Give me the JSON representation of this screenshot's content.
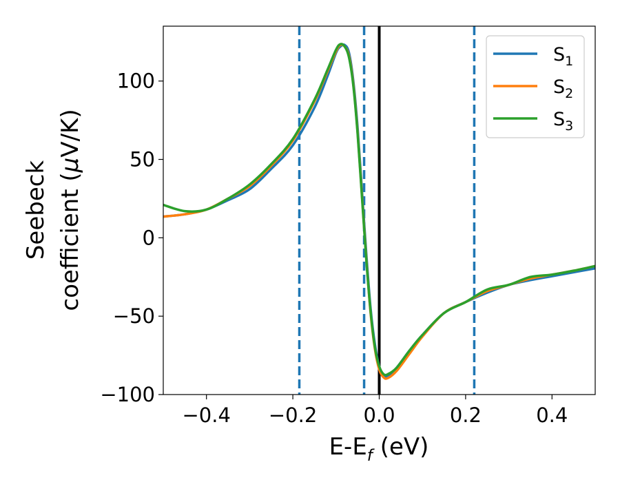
{
  "chart_data": {
    "type": "line",
    "title": "",
    "xlabel": {
      "main": "E-E",
      "sub": "f",
      "suffix": " (eV)"
    },
    "ylabel": {
      "line1": "Seebeck",
      "line2_prefix": "coefficient  (",
      "mu": "μ",
      "line2_suffix": "V/K)"
    },
    "xlim": [
      -0.5,
      0.5
    ],
    "ylim": [
      -100,
      135
    ],
    "x_ticks": [
      {
        "value": -0.4,
        "label": "−0.4"
      },
      {
        "value": -0.2,
        "label": "−0.2"
      },
      {
        "value": 0.0,
        "label": "0.0"
      },
      {
        "value": 0.2,
        "label": "0.2"
      },
      {
        "value": 0.4,
        "label": "0.4"
      }
    ],
    "y_ticks": [
      {
        "value": 100,
        "label": "100"
      },
      {
        "value": 50,
        "label": "50"
      },
      {
        "value": 0,
        "label": "0"
      },
      {
        "value": -50,
        "label": "−50"
      },
      {
        "value": -100,
        "label": "−100"
      }
    ],
    "grid": false,
    "legend_position": "top-right",
    "vertical_lines": [
      {
        "x": -0.185,
        "style": "dashed",
        "color": "#1f77b4"
      },
      {
        "x": -0.035,
        "style": "dashed",
        "color": "#1f77b4"
      },
      {
        "x": 0.0,
        "style": "solid",
        "color": "#000000"
      },
      {
        "x": 0.22,
        "style": "dashed",
        "color": "#1f77b4"
      }
    ],
    "series": [
      {
        "name": {
          "main": "S",
          "sub": "1"
        },
        "color": "#1f77b4",
        "points": [
          [
            -0.5,
            13.5
          ],
          [
            -0.45,
            15
          ],
          [
            -0.4,
            18
          ],
          [
            -0.35,
            24
          ],
          [
            -0.3,
            31
          ],
          [
            -0.25,
            44
          ],
          [
            -0.2,
            59
          ],
          [
            -0.15,
            83
          ],
          [
            -0.12,
            103
          ],
          [
            -0.1,
            118
          ],
          [
            -0.09,
            122
          ],
          [
            -0.08,
            123
          ],
          [
            -0.07,
            118
          ],
          [
            -0.06,
            100
          ],
          [
            -0.05,
            70
          ],
          [
            -0.04,
            30
          ],
          [
            -0.03,
            -10
          ],
          [
            -0.02,
            -45
          ],
          [
            -0.01,
            -68
          ],
          [
            0.0,
            -82
          ],
          [
            0.01,
            -88
          ],
          [
            0.02,
            -88
          ],
          [
            0.04,
            -83
          ],
          [
            0.07,
            -72
          ],
          [
            0.1,
            -62
          ],
          [
            0.15,
            -48
          ],
          [
            0.2,
            -41
          ],
          [
            0.25,
            -35
          ],
          [
            0.3,
            -30
          ],
          [
            0.35,
            -27
          ],
          [
            0.4,
            -24.5
          ],
          [
            0.45,
            -22
          ],
          [
            0.5,
            -19.5
          ]
        ]
      },
      {
        "name": {
          "main": "S",
          "sub": "2"
        },
        "color": "#ff7f0e",
        "points": [
          [
            -0.5,
            13.5
          ],
          [
            -0.45,
            15
          ],
          [
            -0.4,
            18
          ],
          [
            -0.35,
            25
          ],
          [
            -0.3,
            33
          ],
          [
            -0.25,
            46
          ],
          [
            -0.2,
            62
          ],
          [
            -0.15,
            87
          ],
          [
            -0.12,
            106
          ],
          [
            -0.1,
            119
          ],
          [
            -0.09,
            123
          ],
          [
            -0.08,
            122
          ],
          [
            -0.07,
            116
          ],
          [
            -0.06,
            98
          ],
          [
            -0.05,
            67
          ],
          [
            -0.04,
            27
          ],
          [
            -0.03,
            -13
          ],
          [
            -0.02,
            -48
          ],
          [
            -0.01,
            -71
          ],
          [
            0.0,
            -84
          ],
          [
            0.01,
            -89
          ],
          [
            0.02,
            -89.5
          ],
          [
            0.04,
            -85
          ],
          [
            0.07,
            -74
          ],
          [
            0.1,
            -63
          ],
          [
            0.15,
            -48
          ],
          [
            0.2,
            -41
          ],
          [
            0.25,
            -34
          ],
          [
            0.3,
            -30
          ],
          [
            0.35,
            -26
          ],
          [
            0.4,
            -23.5
          ],
          [
            0.45,
            -21
          ],
          [
            0.5,
            -18
          ]
        ]
      },
      {
        "name": {
          "main": "S",
          "sub": "3"
        },
        "color": "#2ca02c",
        "points": [
          [
            -0.5,
            21
          ],
          [
            -0.45,
            17
          ],
          [
            -0.4,
            18
          ],
          [
            -0.35,
            25
          ],
          [
            -0.3,
            34
          ],
          [
            -0.25,
            47
          ],
          [
            -0.2,
            63
          ],
          [
            -0.15,
            88
          ],
          [
            -0.12,
            107
          ],
          [
            -0.1,
            120
          ],
          [
            -0.09,
            123.5
          ],
          [
            -0.08,
            122
          ],
          [
            -0.07,
            115
          ],
          [
            -0.06,
            97
          ],
          [
            -0.05,
            66
          ],
          [
            -0.04,
            26
          ],
          [
            -0.03,
            -14
          ],
          [
            -0.02,
            -47
          ],
          [
            -0.01,
            -70
          ],
          [
            0.0,
            -82
          ],
          [
            0.01,
            -87
          ],
          [
            0.02,
            -87
          ],
          [
            0.04,
            -83
          ],
          [
            0.07,
            -72
          ],
          [
            0.1,
            -62
          ],
          [
            0.15,
            -48
          ],
          [
            0.2,
            -41
          ],
          [
            0.25,
            -33
          ],
          [
            0.3,
            -30
          ],
          [
            0.35,
            -25
          ],
          [
            0.4,
            -23.5
          ],
          [
            0.45,
            -21
          ],
          [
            0.5,
            -18
          ]
        ]
      }
    ]
  }
}
